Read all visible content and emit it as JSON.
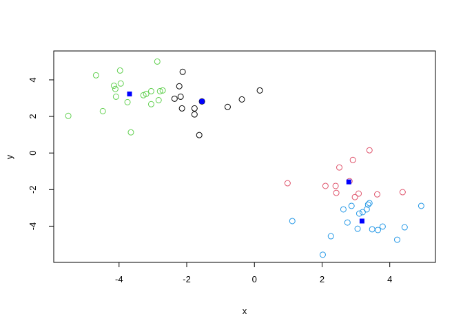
{
  "chart_data": {
    "type": "scatter",
    "x_label": "x",
    "y_label": "y",
    "xlim": [
      -5.93,
      5.35
    ],
    "ylim": [
      -5.98,
      5.58
    ],
    "xticks": [
      -4,
      -2,
      0,
      2,
      4
    ],
    "yticks": [
      -4,
      -2,
      0,
      2,
      4
    ],
    "series": [
      {
        "color": "#61D04F",
        "marker": "circle",
        "x": [
          -5.5,
          -4.68,
          -3.97,
          -4.15,
          -4.11,
          -3.95,
          -4.09,
          -4.48,
          -3.75,
          -3.65,
          -3.28,
          -3.2,
          -3.05,
          -3.05,
          -2.87,
          -2.83,
          -2.79,
          -2.71
        ],
        "values": [
          2.03,
          4.25,
          4.51,
          3.68,
          3.5,
          3.8,
          3.08,
          2.29,
          2.78,
          1.13,
          3.16,
          3.23,
          3.38,
          2.67,
          5.0,
          2.89,
          3.38,
          3.42
        ]
      },
      {
        "color": "#000000",
        "marker": "circle",
        "x": [
          -2.12,
          -2.22,
          -2.18,
          -2.36,
          -2.14,
          -1.77,
          -1.77,
          -1.63,
          -1.55,
          -0.79,
          -0.37,
          0.16
        ],
        "values": [
          4.44,
          3.65,
          3.08,
          2.97,
          2.44,
          2.44,
          2.11,
          0.98,
          2.82,
          2.52,
          2.93,
          3.42
        ]
      },
      {
        "color": "#DF536B",
        "marker": "circle",
        "x": [
          0.98,
          2.1,
          2.4,
          2.42,
          2.51,
          2.81,
          2.91,
          2.97,
          3.08,
          3.4,
          3.63,
          4.38
        ],
        "values": [
          -1.65,
          -1.8,
          -1.8,
          -2.18,
          -0.79,
          -1.54,
          -0.38,
          -2.41,
          -2.22,
          0.15,
          -2.26,
          -2.14
        ]
      },
      {
        "color": "#2297E6",
        "marker": "circle",
        "x": [
          1.12,
          2.26,
          2.63,
          2.75,
          2.87,
          3.05,
          3.1,
          3.2,
          3.32,
          3.36,
          3.4,
          3.48,
          3.65,
          3.79,
          4.22,
          4.44,
          4.93,
          2.02
        ],
        "values": [
          -3.72,
          -4.55,
          -3.08,
          -3.8,
          -2.89,
          -4.14,
          -3.31,
          -3.23,
          -3.08,
          -2.82,
          -2.74,
          -4.17,
          -4.21,
          -4.02,
          -4.74,
          -4.06,
          -2.89,
          -5.56
        ]
      },
      {
        "color": "#0000FF",
        "marker": "square",
        "x": [
          -3.69,
          -1.55,
          2.79,
          3.18
        ],
        "values": [
          3.23,
          2.82,
          -1.58,
          -3.72
        ]
      }
    ]
  }
}
